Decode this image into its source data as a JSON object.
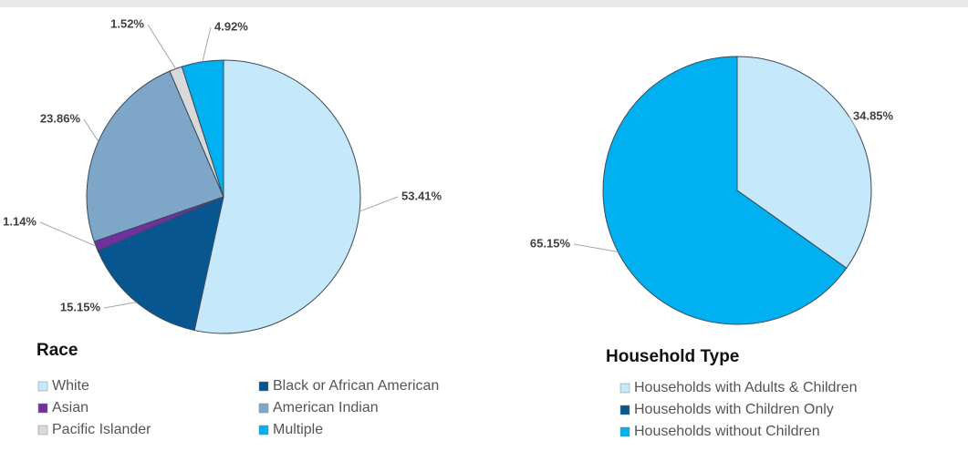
{
  "chart_data": [
    {
      "type": "pie",
      "title": "Race",
      "categories": [
        "White",
        "Black or African American",
        "Asian",
        "American Indian",
        "Pacific Islander",
        "Multiple"
      ],
      "values": [
        53.41,
        15.15,
        1.14,
        23.86,
        1.52,
        4.92
      ],
      "value_labels": [
        "53.41%",
        "15.15%",
        "1.14%",
        "23.86%",
        "1.52%",
        "4.92%"
      ],
      "colors": [
        "#c5e8fb",
        "#08568f",
        "#7030a0",
        "#7da6c9",
        "#d9d9d9",
        "#00b0f0"
      ]
    },
    {
      "type": "pie",
      "title": "Household Type",
      "categories": [
        "Households with Adults & Children",
        "Households with Children Only",
        "Households without Children"
      ],
      "values": [
        34.85,
        0,
        65.15
      ],
      "value_labels": [
        "34.85%",
        null,
        "65.15%"
      ],
      "colors": [
        "#c5e8fb",
        "#08568f",
        "#00b0f0"
      ]
    }
  ]
}
